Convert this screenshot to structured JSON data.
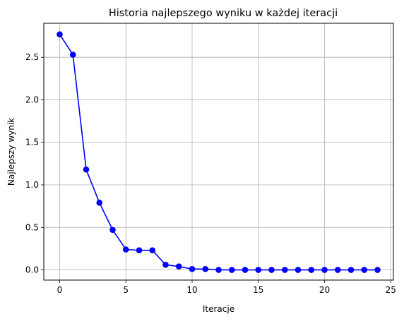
{
  "chart_data": {
    "type": "line",
    "title": "Historia najlepszego wyniku w każdej iteracji",
    "xlabel": "Iteracje",
    "ylabel": "Najlepszy wynik",
    "grid": true,
    "xlim": [
      -1.2,
      25.2
    ],
    "ylim": [
      -0.12,
      2.9
    ],
    "xticks": [
      0,
      5,
      10,
      15,
      20,
      25
    ],
    "xtick_labels": [
      "0",
      "5",
      "10",
      "15",
      "20",
      "25"
    ],
    "yticks": [
      0.0,
      0.5,
      1.0,
      1.5,
      2.0,
      2.5
    ],
    "ytick_labels": [
      "0.0",
      "0.5",
      "1.0",
      "1.5",
      "2.0",
      "2.5"
    ],
    "series": [
      {
        "color": "#0000ff",
        "marker": "circle",
        "x": [
          0,
          1,
          2,
          3,
          4,
          5,
          6,
          7,
          8,
          9,
          10,
          11,
          12,
          13,
          14,
          15,
          16,
          17,
          18,
          19,
          20,
          21,
          22,
          23,
          24
        ],
        "values": [
          2.77,
          2.53,
          1.18,
          0.79,
          0.47,
          0.24,
          0.23,
          0.23,
          0.06,
          0.04,
          0.01,
          0.01,
          0.0,
          0.0,
          0.0,
          0.0,
          0.0,
          0.0,
          0.0,
          0.0,
          0.0,
          0.0,
          0.0,
          0.0,
          0.0
        ]
      }
    ]
  }
}
